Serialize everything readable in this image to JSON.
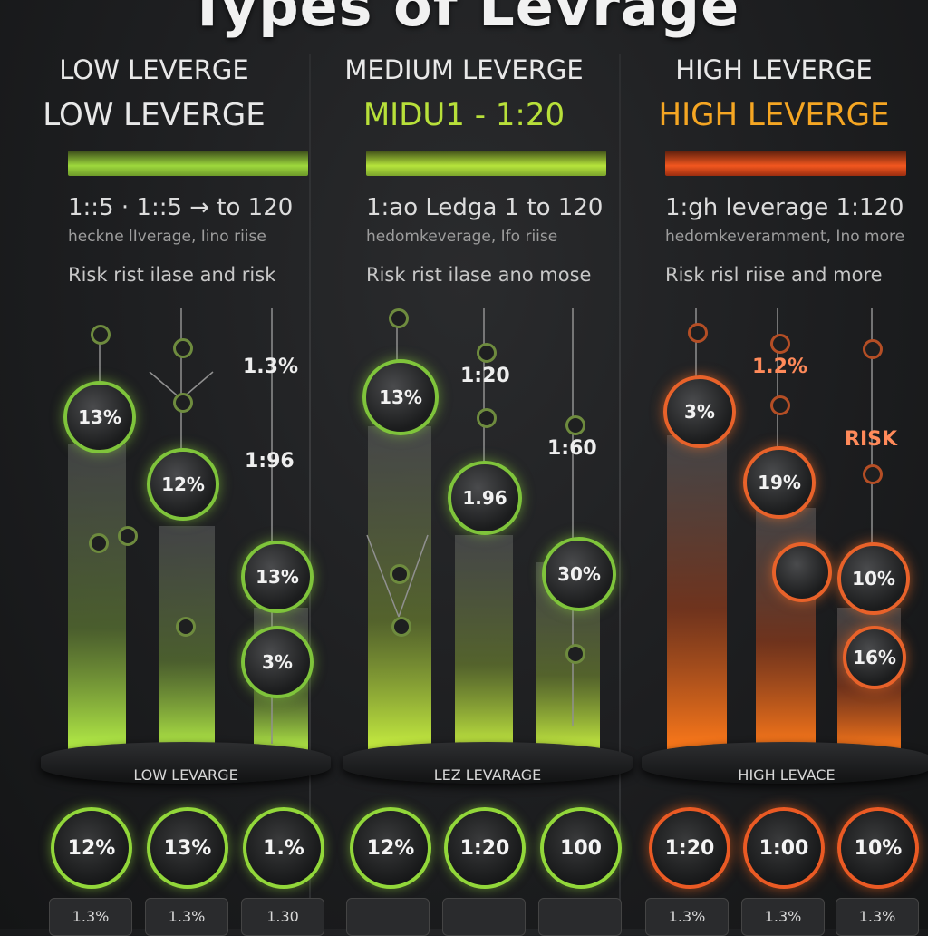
{
  "title": "Types of Levrage",
  "columns": [
    {
      "header": "LOW LEVERGE",
      "subheader": "LOW LEVERGE",
      "accent": "#8ed63a",
      "line1": "1::5 · 1::5 → to 120",
      "line2": "heckne lIverage, Iino riise",
      "line3": "Risk rist ilase and risk",
      "node_labels": [
        "13%",
        "12%",
        "13%",
        "3%"
      ],
      "float_labels": [
        "1.3%",
        "1:96"
      ],
      "base_label": "LOW LEVARGE",
      "bottom_values": [
        "12%",
        "13%",
        "1.%"
      ],
      "pill_values": [
        "1.3%",
        "1.3%",
        "1.30"
      ]
    },
    {
      "header": "MEDIUM LEVERGE",
      "subheader": "MIDU1 - 1:20",
      "accent": "#b8e03a",
      "line1": "1:ao  Ledga 1 to 120",
      "line2": "hedomkeverage, Ifo riise",
      "line3": "Risk rist ilase ano mose",
      "node_labels": [
        "13%",
        "1.96",
        "30%"
      ],
      "float_labels": [
        "1:20",
        "1:60"
      ],
      "base_label": "LEZ LEVARAGE",
      "bottom_values": [
        "12%",
        "1:20",
        "100"
      ],
      "pill_values": [
        "",
        "",
        ""
      ]
    },
    {
      "header": "HIGH LEVERGE",
      "subheader": "HIGH LEVERGE",
      "accent": "#f0602a",
      "line1": "1:gh leverage  1:120",
      "line2": "hedomkeveramment, Ino more",
      "line3": "Risk risl riise and more",
      "node_labels": [
        "3%",
        "19%",
        "",
        "10%",
        "16%"
      ],
      "float_labels": [
        "1.2%",
        "RISK"
      ],
      "base_label": "HIGH LEVACE",
      "bottom_values": [
        "1:20",
        "1:00",
        "10%"
      ],
      "pill_values": [
        "1.3%",
        "1.3%",
        "1.3%"
      ]
    }
  ]
}
